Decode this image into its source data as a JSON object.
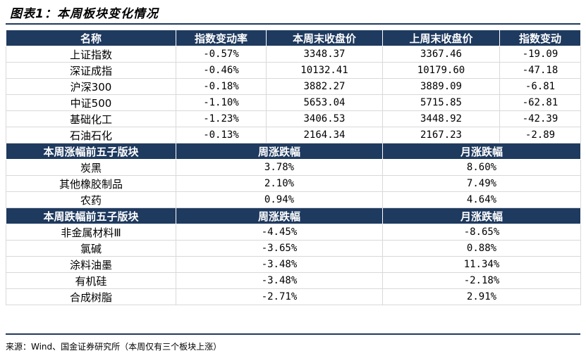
{
  "title": "图表1：本周板块变化情况",
  "index_table": {
    "headers": [
      "名称",
      "指数变动率",
      "本周末收盘价",
      "上周末收盘价",
      "指数变动"
    ],
    "rows": [
      [
        "上证指数",
        "-0.57%",
        "3348.37",
        "3367.46",
        "-19.09"
      ],
      [
        "深证成指",
        "-0.46%",
        "10132.41",
        "10179.60",
        "-47.18"
      ],
      [
        "沪深300",
        "-0.18%",
        "3882.27",
        "3889.09",
        "-6.81"
      ],
      [
        "中证500",
        "-1.10%",
        "5653.04",
        "5715.85",
        "-62.81"
      ],
      [
        "基础化工",
        "-1.23%",
        "3406.53",
        "3448.92",
        "-42.39"
      ],
      [
        "石油石化",
        "-0.13%",
        "2164.34",
        "2167.23",
        "-2.89"
      ]
    ]
  },
  "top_gainers": {
    "headers": [
      "本周涨幅前五子版块",
      "周涨跌幅",
      "月涨跌幅"
    ],
    "rows": [
      [
        "炭黑",
        "3.78%",
        "8.60%"
      ],
      [
        "其他橡胶制品",
        "2.10%",
        "7.49%"
      ],
      [
        "农药",
        "0.94%",
        "4.64%"
      ]
    ]
  },
  "top_losers": {
    "headers": [
      "本周跌幅前五子版块",
      "周涨跌幅",
      "月涨跌幅"
    ],
    "rows": [
      [
        "非金属材料Ⅲ",
        "-4.45%",
        "-8.65%"
      ],
      [
        "氯碱",
        "-3.65%",
        "0.88%"
      ],
      [
        "涂料油墨",
        "-3.48%",
        "11.34%"
      ],
      [
        "有机硅",
        "-3.48%",
        "-2.18%"
      ],
      [
        "合成树脂",
        "-2.71%",
        "2.91%"
      ]
    ]
  },
  "source": "来源：Wind、国金证券研究所（本周仅有三个板块上涨）"
}
